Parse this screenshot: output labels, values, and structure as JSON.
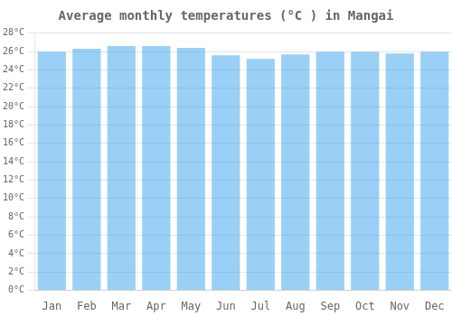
{
  "chart_data": {
    "type": "bar",
    "title": "Average monthly temperatures (°C ) in Mangai",
    "categories": [
      "Jan",
      "Feb",
      "Mar",
      "Apr",
      "May",
      "Jun",
      "Jul",
      "Aug",
      "Sep",
      "Oct",
      "Nov",
      "Dec"
    ],
    "values": [
      26.0,
      26.3,
      26.6,
      26.6,
      26.4,
      25.6,
      25.2,
      25.7,
      26.0,
      26.0,
      25.8,
      26.0
    ],
    "ylim": [
      0,
      28
    ],
    "yticks": [
      {
        "value": 0,
        "label": "0°C"
      },
      {
        "value": 2,
        "label": "2°C"
      },
      {
        "value": 4,
        "label": "4°C"
      },
      {
        "value": 6,
        "label": "6°C"
      },
      {
        "value": 8,
        "label": "8°C"
      },
      {
        "value": 10,
        "label": "10°C"
      },
      {
        "value": 12,
        "label": "12°C"
      },
      {
        "value": 14,
        "label": "14°C"
      },
      {
        "value": 16,
        "label": "16°C"
      },
      {
        "value": 18,
        "label": "18°C"
      },
      {
        "value": 20,
        "label": "20°C"
      },
      {
        "value": 22,
        "label": "22°C"
      },
      {
        "value": 24,
        "label": "24°C"
      },
      {
        "value": 26,
        "label": "26°C"
      },
      {
        "value": 28,
        "label": "28°C"
      }
    ],
    "grid": true
  }
}
